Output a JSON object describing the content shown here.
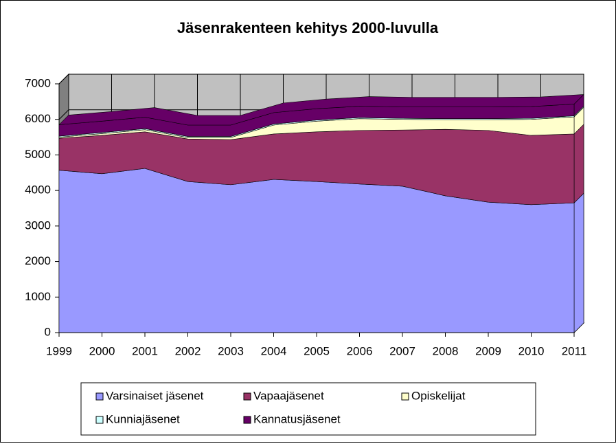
{
  "chart_data": {
    "type": "area",
    "stacked": true,
    "three_d": true,
    "title": "Jäsenrakenteen kehitys 2000-luvulla",
    "categories": [
      "1999",
      "2000",
      "2001",
      "2002",
      "2003",
      "2004",
      "2005",
      "2006",
      "2007",
      "2008",
      "2009",
      "2010",
      "2011"
    ],
    "series": [
      {
        "name": "Varsinaiset jäsenet",
        "color": "#9999ff",
        "values": [
          4570,
          4470,
          4620,
          4250,
          4160,
          4310,
          4250,
          4180,
          4120,
          3850,
          3670,
          3600,
          3650
        ]
      },
      {
        "name": "Vapaajäsenet",
        "color": "#993366",
        "values": [
          900,
          1080,
          1030,
          1200,
          1270,
          1280,
          1400,
          1510,
          1580,
          1870,
          2020,
          1950,
          1940
        ]
      },
      {
        "name": "Opiskelijat",
        "color": "#ffffcc",
        "values": [
          30,
          50,
          60,
          40,
          60,
          250,
          300,
          330,
          300,
          270,
          300,
          450,
          480
        ]
      },
      {
        "name": "Kunniajäsenet",
        "color": "#ccffff",
        "values": [
          30,
          30,
          30,
          30,
          30,
          30,
          30,
          30,
          30,
          30,
          30,
          30,
          30
        ]
      },
      {
        "name": "Kannatusjäsenet",
        "color": "#660066",
        "values": [
          320,
          320,
          320,
          320,
          320,
          320,
          320,
          320,
          320,
          330,
          330,
          330,
          330
        ]
      }
    ],
    "ylim": [
      0,
      7000
    ],
    "yticks": [
      0,
      1000,
      2000,
      3000,
      4000,
      5000,
      6000,
      7000
    ],
    "grid": true,
    "legend": "bottom"
  }
}
